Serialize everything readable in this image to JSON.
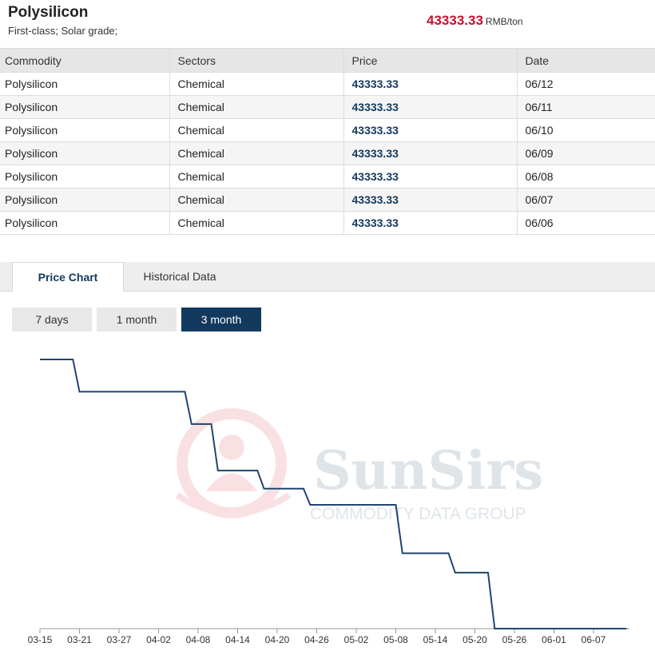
{
  "header": {
    "title": "Polysilicon",
    "subtitle": "First-class; Solar grade;",
    "price": "43333.33",
    "unit": "RMB/ton"
  },
  "table": {
    "columns": [
      "Commodity",
      "Sectors",
      "Price",
      "Date"
    ],
    "rows": [
      [
        "Polysilicon",
        "Chemical",
        "43333.33",
        "06/12"
      ],
      [
        "Polysilicon",
        "Chemical",
        "43333.33",
        "06/11"
      ],
      [
        "Polysilicon",
        "Chemical",
        "43333.33",
        "06/10"
      ],
      [
        "Polysilicon",
        "Chemical",
        "43333.33",
        "06/09"
      ],
      [
        "Polysilicon",
        "Chemical",
        "43333.33",
        "06/08"
      ],
      [
        "Polysilicon",
        "Chemical",
        "43333.33",
        "06/07"
      ],
      [
        "Polysilicon",
        "Chemical",
        "43333.33",
        "06/06"
      ]
    ]
  },
  "tabs": [
    {
      "label": "Price Chart",
      "active": true
    },
    {
      "label": "Historical Data",
      "active": false
    }
  ],
  "ranges": [
    {
      "label": "7 days",
      "active": false
    },
    {
      "label": "1 month",
      "active": false
    },
    {
      "label": "3 month",
      "active": true
    }
  ],
  "watermark": {
    "brand": "SunSirs",
    "tagline": "COMMODITY DATA GROUP"
  },
  "colors": {
    "accent": "#12395e",
    "price_red": "#c8102e",
    "line": "#1f4570"
  },
  "chart_data": {
    "type": "line",
    "xlabel": "",
    "ylabel": "",
    "x_tick_labels": [
      "03-15",
      "03-21",
      "03-27",
      "04-02",
      "04-08",
      "04-14",
      "04-20",
      "04-26",
      "05-02",
      "05-08",
      "05-14",
      "05-20",
      "05-26",
      "06-01",
      "06-07"
    ],
    "x_domain_days": [
      0,
      90
    ],
    "ylim": [
      43333.33,
      85000
    ],
    "grid": false,
    "series": [
      {
        "points": [
          [
            0,
            85000
          ],
          [
            5,
            85000
          ],
          [
            6,
            80000
          ],
          [
            22,
            80000
          ],
          [
            23,
            75000
          ],
          [
            26,
            75000
          ],
          [
            27,
            67800
          ],
          [
            33,
            67800
          ],
          [
            34,
            65000
          ],
          [
            40,
            65000
          ],
          [
            41,
            62500
          ],
          [
            54,
            62500
          ],
          [
            55,
            55000
          ],
          [
            62,
            55000
          ],
          [
            63,
            52000
          ],
          [
            68,
            52000
          ],
          [
            69,
            43333.33
          ],
          [
            89,
            43333.33
          ]
        ]
      }
    ]
  }
}
